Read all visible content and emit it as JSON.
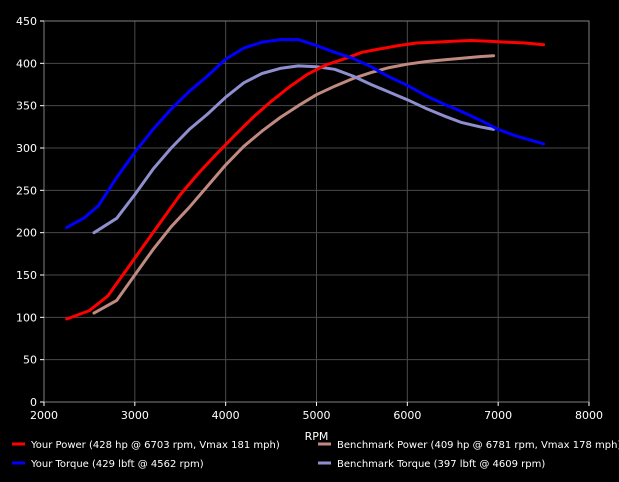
{
  "chart_data": {
    "type": "line",
    "title": "",
    "xlabel": "RPM",
    "ylabel": "",
    "xlim": [
      2000,
      8000
    ],
    "ylim": [
      0,
      450
    ],
    "x_ticks": [
      2000,
      3000,
      4000,
      5000,
      6000,
      7000,
      8000
    ],
    "y_ticks": [
      0,
      50,
      100,
      150,
      200,
      250,
      300,
      350,
      400,
      450
    ],
    "grid": true,
    "background": "#000000",
    "grid_color": "#4a4a4a",
    "legend_position": "bottom",
    "series": [
      {
        "name": "Your Power (428 hp @ 6703 rpm, Vmax 181 mph)",
        "color": "#ff0000",
        "x": [
          2250,
          2500,
          2700,
          2900,
          3100,
          3300,
          3500,
          3700,
          3900,
          4100,
          4300,
          4500,
          4700,
          4900,
          5100,
          5300,
          5500,
          5700,
          5900,
          6100,
          6300,
          6500,
          6700,
          6900,
          7100,
          7300,
          7500
        ],
        "values": [
          98,
          108,
          125,
          155,
          185,
          215,
          245,
          270,
          293,
          315,
          336,
          355,
          372,
          387,
          398,
          405,
          413,
          417,
          421,
          424,
          425,
          426,
          427,
          426,
          425,
          424,
          422
        ]
      },
      {
        "name": "Your Torque (429 lbft @ 4562 rpm)",
        "color": "#0000ff",
        "x": [
          2250,
          2450,
          2600,
          2800,
          3000,
          3200,
          3400,
          3600,
          3800,
          4000,
          4200,
          4400,
          4600,
          4800,
          5000,
          5200,
          5400,
          5600,
          5800,
          6000,
          6200,
          6400,
          6600,
          6800,
          7000,
          7200,
          7500
        ],
        "values": [
          206,
          218,
          232,
          265,
          295,
          322,
          346,
          367,
          385,
          405,
          418,
          425,
          428,
          428,
          421,
          413,
          406,
          396,
          384,
          374,
          362,
          352,
          343,
          333,
          322,
          314,
          305
        ]
      },
      {
        "name": "Benchmark Power (409 hp @ 6781 rpm, Vmax 178 mph)",
        "color": "#c08a80",
        "x": [
          2550,
          2800,
          3000,
          3200,
          3400,
          3600,
          3800,
          4000,
          4200,
          4400,
          4600,
          4800,
          5000,
          5200,
          5400,
          5600,
          5800,
          6000,
          6200,
          6400,
          6600,
          6800,
          6950
        ],
        "values": [
          105,
          120,
          150,
          180,
          207,
          230,
          255,
          280,
          302,
          320,
          336,
          350,
          363,
          373,
          382,
          389,
          395,
          399,
          402,
          404,
          406,
          408,
          409
        ]
      },
      {
        "name": "Benchmark Torque (397 lbft @ 4609 rpm)",
        "color": "#8f8fcf",
        "x": [
          2550,
          2800,
          3000,
          3200,
          3400,
          3600,
          3800,
          4000,
          4200,
          4400,
          4600,
          4800,
          5000,
          5200,
          5400,
          5600,
          5800,
          6000,
          6200,
          6400,
          6600,
          6800,
          6950
        ],
        "values": [
          200,
          217,
          245,
          275,
          300,
          322,
          340,
          360,
          377,
          388,
          394,
          397,
          396,
          393,
          385,
          375,
          366,
          357,
          347,
          338,
          330,
          325,
          322
        ]
      }
    ]
  }
}
